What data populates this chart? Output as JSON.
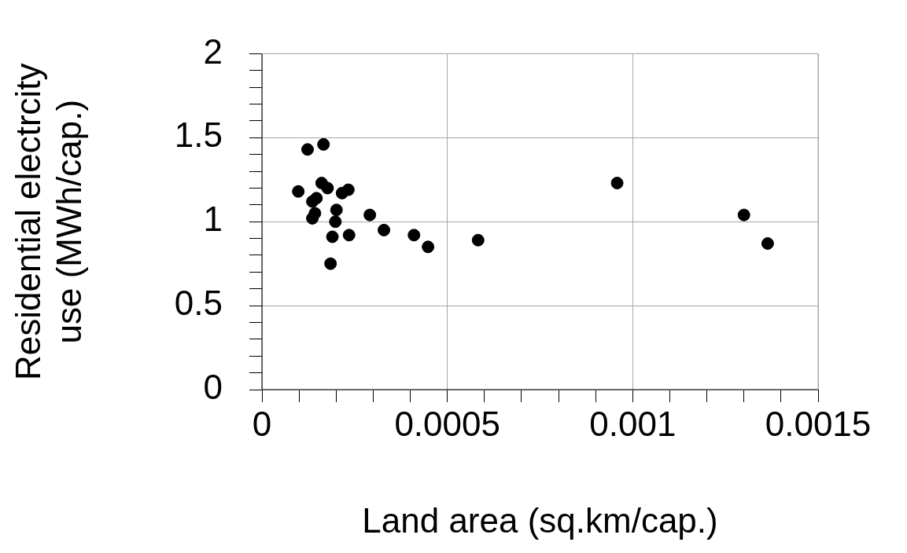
{
  "chart_data": {
    "type": "scatter",
    "xlabel": "Land area (sq.km/cap.)",
    "ylabel": "Residential electrcity use (MWh/cap.)",
    "x": [
      0.000123,
      0.000166,
      9.8e-05,
      0.000161,
      0.000177,
      0.000216,
      0.000233,
      0.000136,
      0.000147,
      0.000143,
      0.000136,
      0.000201,
      0.000198,
      0.00019,
      0.000235,
      0.000185,
      0.000291,
      0.000329,
      0.00041,
      0.000448,
      0.000583,
      0.000958,
      0.0013,
      0.001364
    ],
    "values": [
      1.43,
      1.46,
      1.18,
      1.23,
      1.2,
      1.17,
      1.19,
      1.12,
      1.14,
      1.05,
      1.02,
      1.07,
      1.0,
      0.91,
      0.92,
      0.75,
      1.04,
      0.95,
      0.92,
      0.85,
      0.89,
      1.23,
      1.04,
      0.87
    ],
    "color": "#000000",
    "marker": "circle",
    "xlim": [
      0,
      0.0015
    ],
    "xticks": [
      0,
      {
        "value": 0.0001,
        "label": null
      },
      {
        "value": 0.0002,
        "label": null
      },
      {
        "value": 0.0003,
        "label": null
      },
      {
        "value": 0.0004,
        "label": null
      },
      0.0005,
      {
        "value": 0.0006,
        "label": null
      },
      {
        "value": 0.0007,
        "label": null
      },
      {
        "value": 0.0008,
        "label": null
      },
      {
        "value": 0.0009,
        "label": null
      },
      0.001,
      {
        "value": 0.0011,
        "label": null
      },
      {
        "value": 0.0012,
        "label": null
      },
      {
        "value": 0.0013,
        "label": null
      },
      {
        "value": 0.0014,
        "label": null
      },
      0.0015
    ],
    "ylim": [
      0,
      2
    ],
    "yticks": [
      0,
      {
        "value": 0.1,
        "label": null
      },
      {
        "value": 0.2,
        "label": null
      },
      {
        "value": 0.3,
        "label": null
      },
      {
        "value": 0.4,
        "label": null
      },
      0.5,
      {
        "value": 0.6,
        "label": null
      },
      {
        "value": 0.7,
        "label": null
      },
      {
        "value": 0.8,
        "label": null
      },
      {
        "value": 0.9,
        "label": null
      },
      1,
      {
        "value": 1.1,
        "label": null
      },
      {
        "value": 1.2,
        "label": null
      },
      {
        "value": 1.3,
        "label": null
      },
      {
        "value": 1.4,
        "label": null
      },
      1.5,
      {
        "value": 1.6,
        "label": null
      },
      {
        "value": 1.7,
        "label": null
      },
      {
        "value": 1.8,
        "label": null
      },
      {
        "value": 1.9,
        "label": null
      },
      2
    ],
    "grid": true,
    "legend": false
  }
}
